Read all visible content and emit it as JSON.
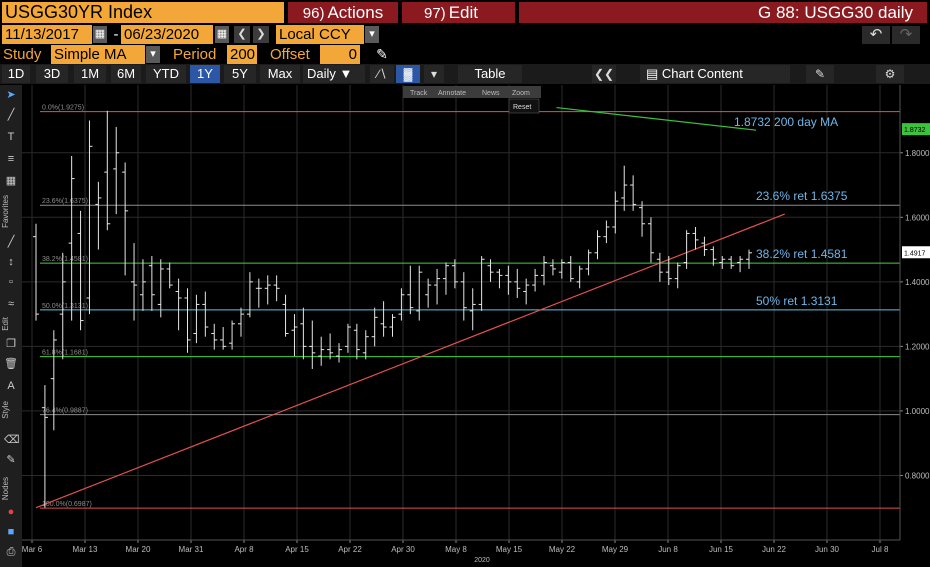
{
  "header": {
    "ticker": "USGG30YR Index",
    "actions_num": "96)",
    "actions_label": "Actions",
    "edit_num": "97)",
    "edit_label": "Edit",
    "title": "G 88: USGG30 daily"
  },
  "range": {
    "start": "11/13/2017",
    "separator": "-",
    "end": "06/23/2020",
    "currency": "Local CCY"
  },
  "study": {
    "label": "Study",
    "value": "Simple MA",
    "period_label": "Period",
    "period_value": "200",
    "offset_label": "Offset",
    "offset_value": "0"
  },
  "toolbar": {
    "periods": [
      "1D",
      "3D",
      "1M",
      "6M",
      "YTD",
      "1Y",
      "5Y",
      "Max"
    ],
    "active_period": "1Y",
    "frequency": "Daily",
    "table_label": "Table",
    "chart_content_label": "Chart Content"
  },
  "left_labels": {
    "favorites": "Favorites",
    "edit": "Edit",
    "style": "Style",
    "nodes": "Nodes"
  },
  "mini_toolbar": {
    "track": "Track",
    "annotate": "Annotate",
    "news": "News",
    "zoom": "Zoom",
    "reset": "Reset"
  },
  "colors": {
    "orange": "#f3a738",
    "red_menu": "#8a1a1f",
    "active_blue": "#2c56a6",
    "fib_red": "#e0524f",
    "fib_gray": "#8c8c8c",
    "fib_green": "#3fd23f",
    "fib_cyan": "#58c8e8",
    "trend": "#e0524f",
    "ma": "#3cc23c",
    "annotation": "#6fb6e8"
  },
  "chart_data": {
    "type": "ohlc",
    "x_ticks": [
      "Mar 6",
      "Mar 13",
      "Mar 20",
      "Mar 31",
      "Apr 8",
      "Apr 15",
      "Apr 22",
      "Apr 30",
      "May 8",
      "May 15",
      "May 22",
      "May 29",
      "Jun 8",
      "Jun 15",
      "Jun 22",
      "Jun 30",
      "Jul 8"
    ],
    "x_year": "2020",
    "y_ticks": [
      "1.8000",
      "1.6000",
      "1.4000",
      "1.2000",
      "1.0000",
      "0.8000"
    ],
    "ylim": [
      0.6,
      2.01
    ],
    "fib_levels": [
      {
        "label": "0.0%(1.9275)",
        "value": 1.9275,
        "color": "red"
      },
      {
        "label": "23.6%(1.6375)",
        "value": 1.6375,
        "color": "gray"
      },
      {
        "label": "38.2%(1.4581)",
        "value": 1.4581,
        "color": "green"
      },
      {
        "label": "50.0%(1.3131)",
        "value": 1.3131,
        "color": "cyan"
      },
      {
        "label": "61.8%(1.1681)",
        "value": 1.1681,
        "color": "green"
      },
      {
        "label": "76.4%(0.9887)",
        "value": 0.9887,
        "color": "gray"
      },
      {
        "label": "100.0%(0.6987)",
        "value": 0.6987,
        "color": "red"
      }
    ],
    "annotations": [
      {
        "text": "1.8732 200 day MA",
        "value": 1.8732
      },
      {
        "text": "23.6% ret 1.6375",
        "value": 1.6375
      },
      {
        "text": "38.2% ret 1.4581",
        "value": 1.4581
      },
      {
        "text": "50% ret 1.3131",
        "value": 1.3131
      }
    ],
    "price_tags": [
      {
        "text": "1.8732",
        "value": 1.8732,
        "color": "#3cc23c"
      },
      {
        "text": "1.4917",
        "value": 1.4917,
        "color": "#ffffff"
      }
    ],
    "trendline": {
      "start": [
        0,
        0.7
      ],
      "end": [
        1.05,
        1.61
      ]
    },
    "ma_line": {
      "start": [
        0.73,
        1.94
      ],
      "end": [
        1.01,
        1.87
      ]
    },
    "bars": [
      [
        1.54,
        1.58,
        1.28,
        1.3
      ],
      [
        1.01,
        1.08,
        0.7,
        0.98
      ],
      [
        1.1,
        1.25,
        0.94,
        1.22
      ],
      [
        1.3,
        1.49,
        1.16,
        1.4
      ],
      [
        1.52,
        1.79,
        1.28,
        1.72
      ],
      [
        1.55,
        1.62,
        1.25,
        1.28
      ],
      [
        1.35,
        1.9,
        1.3,
        1.82
      ],
      [
        1.64,
        1.71,
        1.5,
        1.66
      ],
      [
        1.74,
        1.93,
        1.56,
        1.58
      ],
      [
        1.75,
        1.88,
        1.61,
        1.8
      ],
      [
        1.74,
        1.77,
        1.42,
        1.62
      ],
      [
        1.4,
        1.52,
        1.28,
        1.39
      ],
      [
        1.36,
        1.47,
        1.31,
        1.4
      ],
      [
        1.45,
        1.48,
        1.31,
        1.36
      ],
      [
        1.33,
        1.47,
        1.29,
        1.44
      ],
      [
        1.44,
        1.46,
        1.38,
        1.39
      ],
      [
        1.37,
        1.41,
        1.25,
        1.35
      ],
      [
        1.35,
        1.38,
        1.18,
        1.22
      ],
      [
        1.24,
        1.36,
        1.21,
        1.33
      ],
      [
        1.33,
        1.37,
        1.23,
        1.26
      ],
      [
        1.24,
        1.27,
        1.19,
        1.22
      ],
      [
        1.22,
        1.26,
        1.19,
        1.2
      ],
      [
        1.21,
        1.28,
        1.19,
        1.27
      ],
      [
        1.27,
        1.32,
        1.23,
        1.3
      ],
      [
        1.3,
        1.43,
        1.29,
        1.4
      ],
      [
        1.38,
        1.41,
        1.32,
        1.38
      ],
      [
        1.38,
        1.42,
        1.33,
        1.39
      ],
      [
        1.39,
        1.42,
        1.34,
        1.38
      ],
      [
        1.33,
        1.36,
        1.23,
        1.24
      ],
      [
        1.25,
        1.3,
        1.17,
        1.26
      ],
      [
        1.27,
        1.32,
        1.16,
        1.2
      ],
      [
        1.2,
        1.28,
        1.13,
        1.18
      ],
      [
        1.17,
        1.23,
        1.14,
        1.19
      ],
      [
        1.19,
        1.24,
        1.16,
        1.18
      ],
      [
        1.17,
        1.21,
        1.15,
        1.19
      ],
      [
        1.2,
        1.27,
        1.18,
        1.26
      ],
      [
        1.25,
        1.27,
        1.16,
        1.19
      ],
      [
        1.18,
        1.25,
        1.16,
        1.23
      ],
      [
        1.23,
        1.32,
        1.2,
        1.29
      ],
      [
        1.27,
        1.34,
        1.23,
        1.26
      ],
      [
        1.26,
        1.3,
        1.23,
        1.29
      ],
      [
        1.3,
        1.38,
        1.28,
        1.36
      ],
      [
        1.36,
        1.45,
        1.3,
        1.32
      ],
      [
        1.31,
        1.45,
        1.28,
        1.43
      ],
      [
        1.36,
        1.41,
        1.32,
        1.39
      ],
      [
        1.39,
        1.44,
        1.33,
        1.41
      ],
      [
        1.41,
        1.46,
        1.36,
        1.45
      ],
      [
        1.45,
        1.47,
        1.38,
        1.4
      ],
      [
        1.4,
        1.43,
        1.28,
        1.32
      ],
      [
        1.31,
        1.38,
        1.25,
        1.33
      ],
      [
        1.33,
        1.48,
        1.31,
        1.47
      ],
      [
        1.45,
        1.47,
        1.4,
        1.43
      ],
      [
        1.43,
        1.44,
        1.38,
        1.42
      ],
      [
        1.42,
        1.45,
        1.36,
        1.4
      ],
      [
        1.4,
        1.44,
        1.35,
        1.38
      ],
      [
        1.37,
        1.41,
        1.33,
        1.39
      ],
      [
        1.39,
        1.44,
        1.37,
        1.42
      ],
      [
        1.42,
        1.48,
        1.39,
        1.46
      ],
      [
        1.45,
        1.47,
        1.42,
        1.44
      ],
      [
        1.43,
        1.47,
        1.41,
        1.46
      ],
      [
        1.46,
        1.48,
        1.4,
        1.41
      ],
      [
        1.4,
        1.45,
        1.38,
        1.44
      ],
      [
        1.44,
        1.5,
        1.42,
        1.49
      ],
      [
        1.49,
        1.56,
        1.47,
        1.54
      ],
      [
        1.54,
        1.59,
        1.52,
        1.57
      ],
      [
        1.57,
        1.68,
        1.55,
        1.65
      ],
      [
        1.66,
        1.76,
        1.62,
        1.7
      ],
      [
        1.7,
        1.73,
        1.62,
        1.64
      ],
      [
        1.63,
        1.65,
        1.54,
        1.58
      ],
      [
        1.58,
        1.6,
        1.46,
        1.49
      ],
      [
        1.47,
        1.49,
        1.4,
        1.43
      ],
      [
        1.43,
        1.48,
        1.39,
        1.41
      ],
      [
        1.41,
        1.46,
        1.38,
        1.45
      ],
      [
        1.46,
        1.56,
        1.44,
        1.55
      ],
      [
        1.55,
        1.57,
        1.5,
        1.53
      ],
      [
        1.52,
        1.54,
        1.48,
        1.5
      ],
      [
        1.5,
        1.51,
        1.45,
        1.47
      ],
      [
        1.46,
        1.48,
        1.44,
        1.47
      ],
      [
        1.47,
        1.48,
        1.44,
        1.45
      ],
      [
        1.46,
        1.48,
        1.43,
        1.47
      ],
      [
        1.47,
        1.5,
        1.44,
        1.49
      ]
    ]
  }
}
